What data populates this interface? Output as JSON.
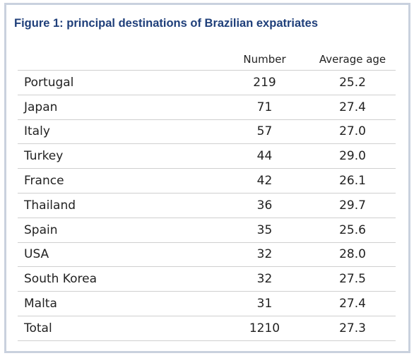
{
  "figure": {
    "title": "Figure 1: principal destinations of Brazilian expatriates"
  },
  "table": {
    "columns": [
      "",
      "Number",
      "Average age"
    ],
    "rows": [
      {
        "country": "Portugal",
        "number": "219",
        "average_age": "25.2"
      },
      {
        "country": "Japan",
        "number": "71",
        "average_age": "27.4"
      },
      {
        "country": "Italy",
        "number": "57",
        "average_age": "27.0"
      },
      {
        "country": "Turkey",
        "number": "44",
        "average_age": "29.0"
      },
      {
        "country": "France",
        "number": "42",
        "average_age": "26.1"
      },
      {
        "country": "Thailand",
        "number": "36",
        "average_age": "29.7"
      },
      {
        "country": "Spain",
        "number": "35",
        "average_age": "25.6"
      },
      {
        "country": "USA",
        "number": "32",
        "average_age": "28.0"
      },
      {
        "country": "South Korea",
        "number": "32",
        "average_age": "27.5"
      },
      {
        "country": "Malta",
        "number": "31",
        "average_age": "27.4"
      },
      {
        "country": "Total",
        "number": "1210",
        "average_age": "27.3"
      }
    ]
  },
  "colors": {
    "title": "#1f3f7a",
    "frame_border": "#c9d1de",
    "row_divider": "#cfcfcf",
    "text": "#222222"
  }
}
